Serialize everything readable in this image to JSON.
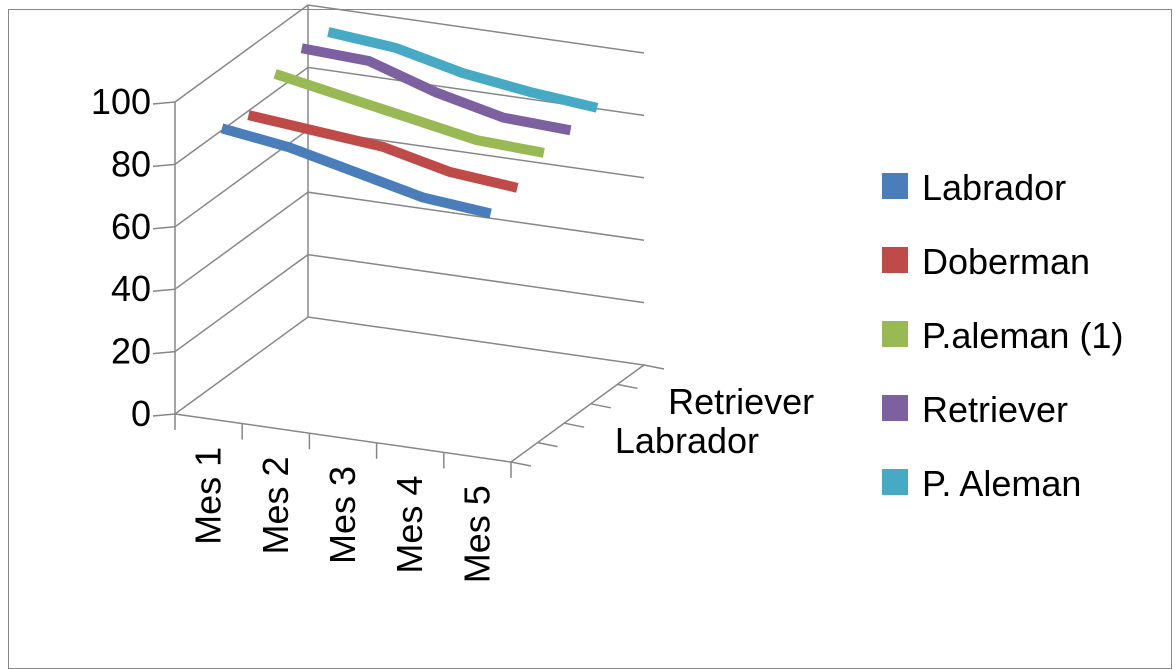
{
  "chart_data": {
    "type": "line",
    "categories": [
      "Mes 1",
      "Mes 2",
      "Mes 3",
      "Mes 4",
      "Mes 5"
    ],
    "depth_labels": [
      "Labrador",
      "Retriever"
    ],
    "ylim": [
      0,
      100
    ],
    "yticks": [
      "100",
      "80",
      "60",
      "40",
      "20",
      "0"
    ],
    "series": [
      {
        "name": "Labrador",
        "color": "#4a7ebb",
        "values": [
          90,
          87,
          82,
          77,
          75
        ]
      },
      {
        "name": "Doberman",
        "color": "#be4b48",
        "values": [
          88,
          86,
          84,
          79,
          77
        ]
      },
      {
        "name": "P.aleman (1)",
        "color": "#98b954",
        "values": [
          95,
          91,
          87,
          83,
          82
        ]
      },
      {
        "name": "Retriever",
        "color": "#7d60a0",
        "values": [
          97,
          96,
          89,
          84,
          83
        ]
      },
      {
        "name": "P. Aleman",
        "color": "#46aac5",
        "values": [
          96,
          94,
          89,
          86,
          84
        ]
      }
    ],
    "legend_position": "right",
    "grid": true
  }
}
